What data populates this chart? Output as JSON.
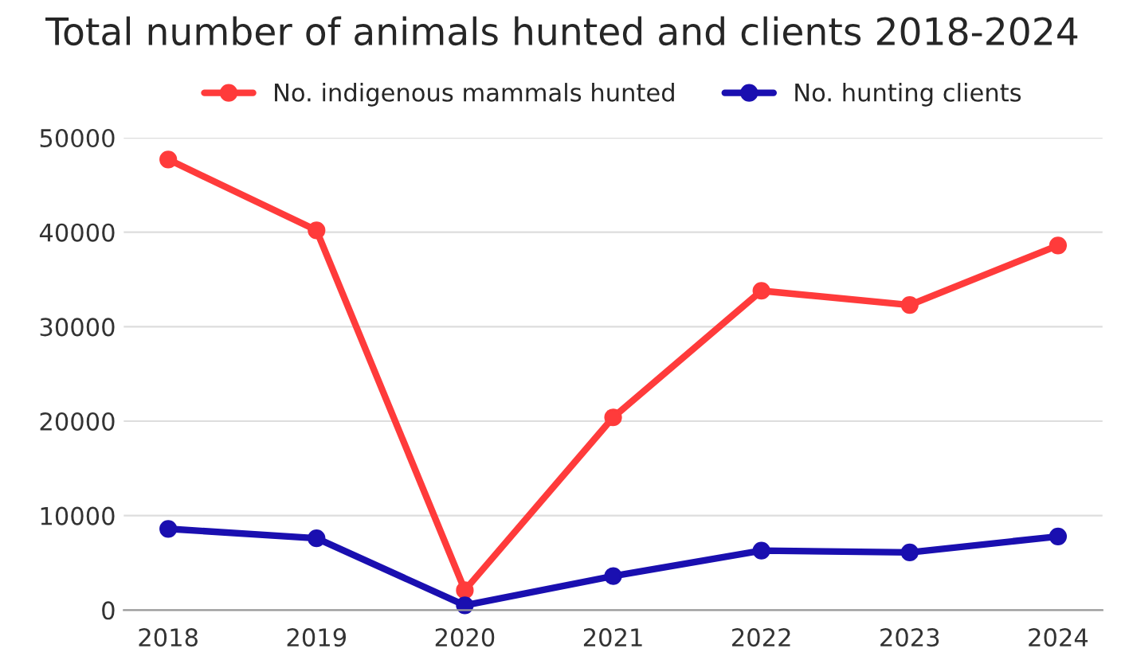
{
  "chart_data": {
    "type": "line",
    "title": "Total number of animals hunted and clients 2018-2024",
    "categories": [
      "2018",
      "2019",
      "2020",
      "2021",
      "2022",
      "2023",
      "2024"
    ],
    "series": [
      {
        "name": "No. indigenous mammals hunted",
        "color": "#ff3b3b",
        "values": [
          47700,
          40200,
          2100,
          20400,
          33800,
          32300,
          38600
        ]
      },
      {
        "name": "No. hunting clients",
        "color": "#1a0fb0",
        "values": [
          8600,
          7600,
          500,
          3600,
          6300,
          6100,
          7800
        ]
      }
    ],
    "ylim": [
      0,
      50000
    ],
    "yticks": [
      0,
      10000,
      20000,
      30000,
      40000,
      50000
    ],
    "grid": "y",
    "legend": "top",
    "marker": "circle",
    "line_style": "solid"
  }
}
